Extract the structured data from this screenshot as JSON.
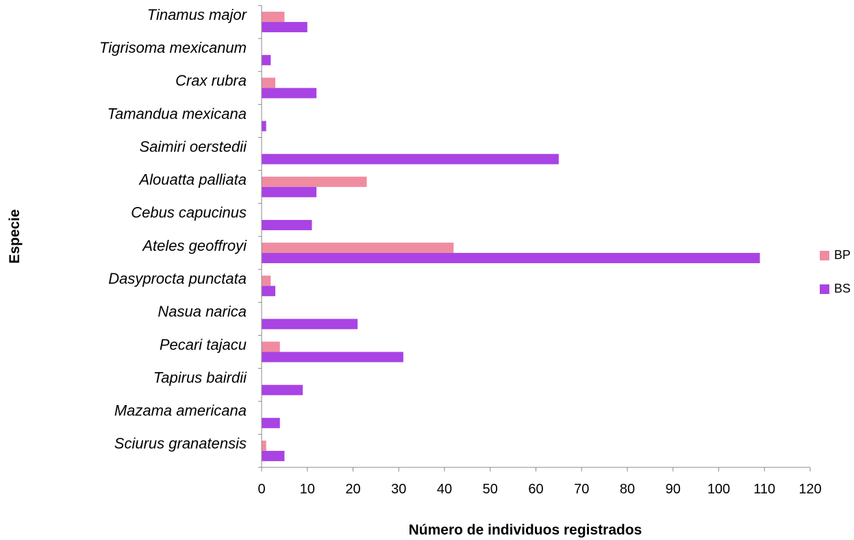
{
  "chart_data": {
    "type": "bar",
    "orientation": "horizontal",
    "categories": [
      "Tinamus major",
      "Tigrisoma mexicanum",
      "Crax rubra",
      "Tamandua mexicana",
      "Saimiri oerstedii",
      "Alouatta palliata",
      "Cebus capucinus",
      "Ateles geoffroyi",
      "Dasyprocta punctata",
      "Nasua narica",
      "Pecari tajacu",
      "Tapirus bairdii",
      "Mazama americana",
      "Sciurus granatensis"
    ],
    "series": [
      {
        "name": "BP",
        "color": "#f08ca0",
        "values": [
          5,
          0,
          3,
          0,
          0,
          23,
          0,
          42,
          2,
          0,
          4,
          0,
          0,
          1
        ]
      },
      {
        "name": "BS",
        "color": "#a943e4",
        "values": [
          10,
          2,
          12,
          1,
          65,
          12,
          11,
          109,
          3,
          21,
          31,
          9,
          4,
          5
        ]
      }
    ],
    "xlabel": "Número de individuos registrados",
    "ylabel": "Especie",
    "xlim": [
      0,
      120
    ],
    "xticks": [
      0,
      10,
      20,
      30,
      40,
      50,
      60,
      70,
      80,
      90,
      100,
      110,
      120
    ],
    "grid": false,
    "legend_position": "right"
  }
}
